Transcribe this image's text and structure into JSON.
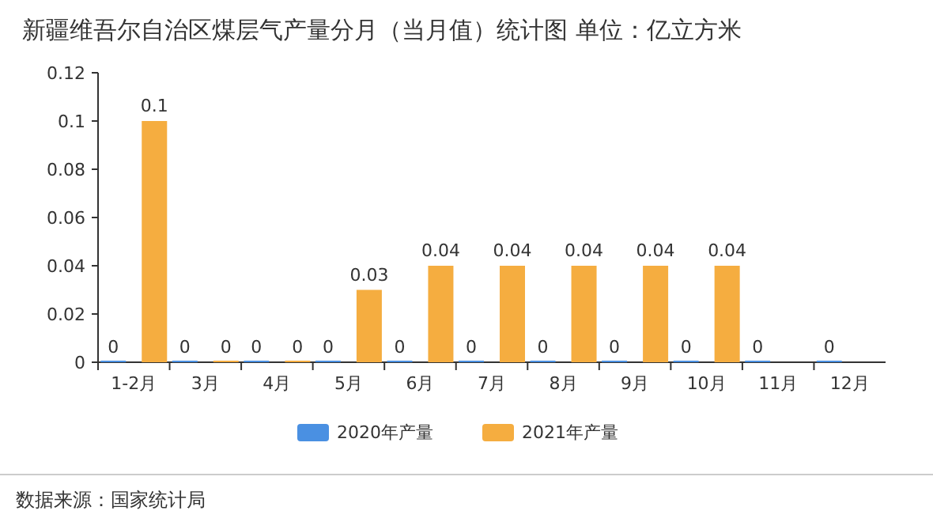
{
  "chart_data": {
    "type": "bar",
    "title": "新疆维吾尔自治区煤层气产量分月（当月值）统计图 单位：亿立方米",
    "categories": [
      "1-2月",
      "3月",
      "4月",
      "5月",
      "6月",
      "7月",
      "8月",
      "9月",
      "10月",
      "11月",
      "12月"
    ],
    "series": [
      {
        "name": "2020年产量",
        "color": "#4a90e2",
        "values": [
          0,
          0,
          0,
          0,
          0,
          0,
          0,
          0,
          0,
          0,
          0
        ]
      },
      {
        "name": "2021年产量",
        "color": "#f5ad40",
        "values": [
          0.1,
          0,
          0,
          0.03,
          0.04,
          0.04,
          0.04,
          0.04,
          0.04,
          null,
          null
        ]
      }
    ],
    "ylim": [
      0,
      0.12
    ],
    "yticks": [
      0,
      0.02,
      0.04,
      0.06,
      0.08,
      0.1,
      0.12
    ],
    "data_labels": true,
    "legend": "bottom",
    "annotations": [
      "数据来源：国家统计局"
    ]
  }
}
